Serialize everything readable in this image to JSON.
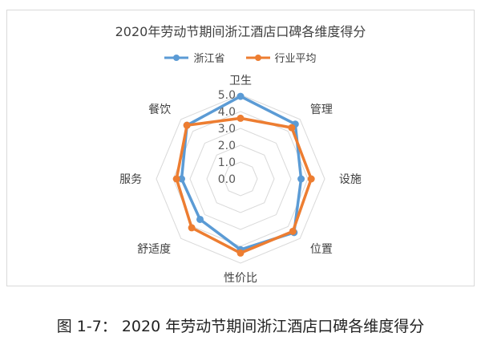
{
  "chart_data": {
    "type": "radar",
    "title": "2020年劳动节期间浙江酒店口碑各维度得分",
    "categories": [
      "卫生",
      "管理",
      "设施",
      "位置",
      "性价比",
      "舒适度",
      "服务",
      "餐饮"
    ],
    "ticks": [
      "0.0",
      "1.0",
      "2.0",
      "3.0",
      "4.0",
      "5.0"
    ],
    "rlim": [
      0,
      5
    ],
    "grid": true,
    "legend": "top",
    "series": [
      {
        "name": "浙江省",
        "color": "#5b9bd5",
        "values": [
          4.9,
          4.6,
          3.6,
          4.5,
          4.2,
          3.4,
          3.5,
          4.5
        ]
      },
      {
        "name": "行业平均",
        "color": "#ed7d31",
        "values": [
          3.6,
          4.3,
          4.2,
          4.4,
          4.4,
          4.1,
          3.8,
          4.5
        ]
      }
    ]
  },
  "caption": "图 1-7： 2020 年劳动节期间浙江酒店口碑各维度得分"
}
